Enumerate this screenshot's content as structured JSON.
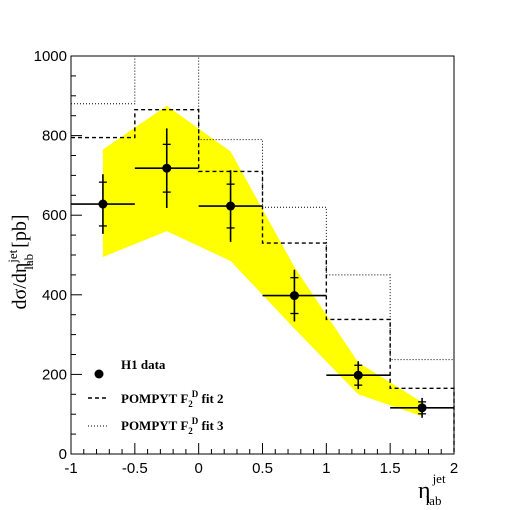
{
  "chart_data": {
    "type": "line",
    "ylabel_parts": {
      "main": "dσ/dη",
      "sup": "jet",
      "sub": "lab",
      "unit": "[pb]"
    },
    "xlabel_parts": {
      "main": "η",
      "sup": "jet",
      "sub": "lab"
    },
    "xlim": [
      -1,
      2
    ],
    "ylim": [
      0,
      1000
    ],
    "xticks": [
      -1,
      -0.5,
      0,
      0.5,
      1,
      1.5,
      2
    ],
    "xtick_labels": [
      "-1",
      "-0.5",
      "0",
      "0.5",
      "1",
      "1.5",
      "2"
    ],
    "yticks": [
      0,
      200,
      400,
      600,
      800,
      1000
    ],
    "ytick_labels": [
      "0",
      "200",
      "400",
      "600",
      "800",
      "1000"
    ],
    "grid": false,
    "legend_position": "bottom-left",
    "colors": {
      "band": "#ffff00",
      "data": "#000000"
    },
    "band": {
      "x": [
        -0.75,
        -0.25,
        0.25,
        0.75,
        1.25,
        1.75
      ],
      "upper": [
        765,
        875,
        760,
        470,
        230,
        130
      ],
      "lower": [
        495,
        560,
        485,
        315,
        150,
        95
      ]
    },
    "series": [
      {
        "name": "H1 data",
        "style": "points",
        "x": [
          -0.75,
          -0.25,
          0.25,
          0.75,
          1.25,
          1.75
        ],
        "y": [
          628,
          718,
          623,
          398,
          198,
          116
        ],
        "xerr": 0.25,
        "err_total": [
          75,
          100,
          90,
          65,
          35,
          25
        ],
        "err_stat": [
          55,
          60,
          55,
          45,
          25,
          15
        ]
      },
      {
        "name": "POMPYT F_2^D fit 2",
        "legend_label": {
          "prefix": "POMPYT F",
          "sub": "2",
          "sup": "D",
          "suffix": " fit 2"
        },
        "style": "dashed-histogram",
        "bin_edges": [
          -1,
          -0.5,
          0,
          0.5,
          1,
          1.5,
          2
        ],
        "values": [
          795,
          865,
          710,
          530,
          338,
          165
        ]
      },
      {
        "name": "POMPYT F_2^D fit 3",
        "legend_label": {
          "prefix": "POMPYT F",
          "sub": "2",
          "sup": "D",
          "suffix": " fit 3"
        },
        "style": "dotted-histogram",
        "bin_edges": [
          -1,
          -0.5,
          0,
          0.5,
          1,
          1.5,
          2
        ],
        "values": [
          880,
          1000,
          790,
          620,
          450,
          237
        ]
      }
    ]
  }
}
